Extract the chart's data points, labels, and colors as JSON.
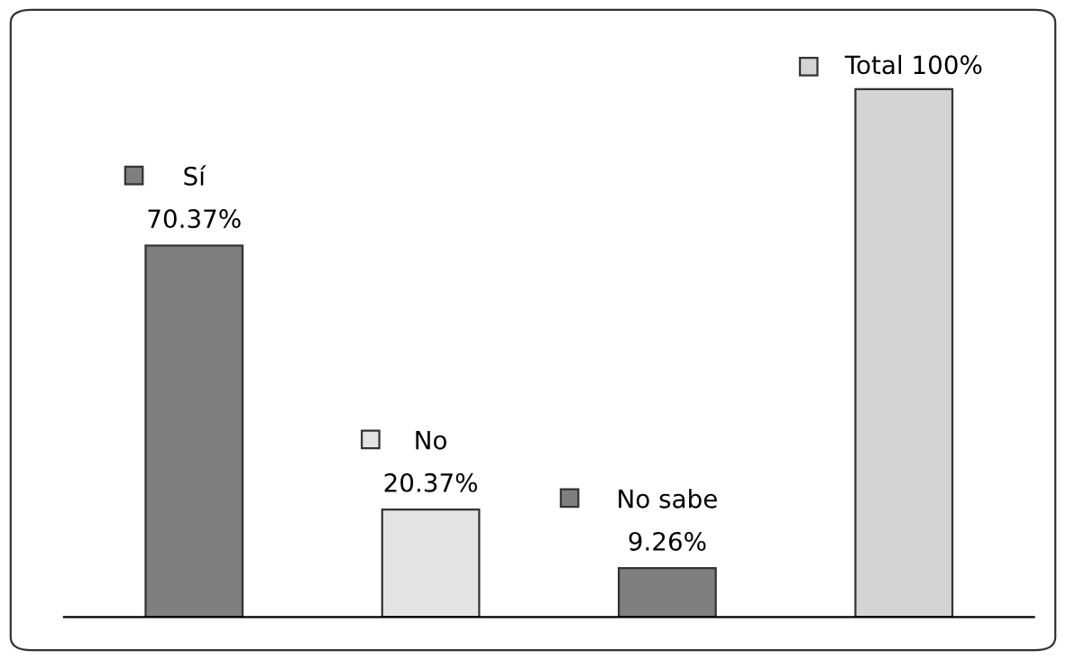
{
  "chart_data": {
    "type": "bar",
    "categories": [
      "Sí",
      "No",
      "No sabe",
      "Total"
    ],
    "values": [
      70.37,
      20.37,
      9.26,
      100
    ],
    "value_labels": [
      "70.37%",
      "20.37%",
      "9.26%",
      "100%"
    ],
    "colors": [
      "#7f7f7f",
      "#e3e3e3",
      "#7f7f7f",
      "#d4d4d4"
    ],
    "legend": false
  }
}
